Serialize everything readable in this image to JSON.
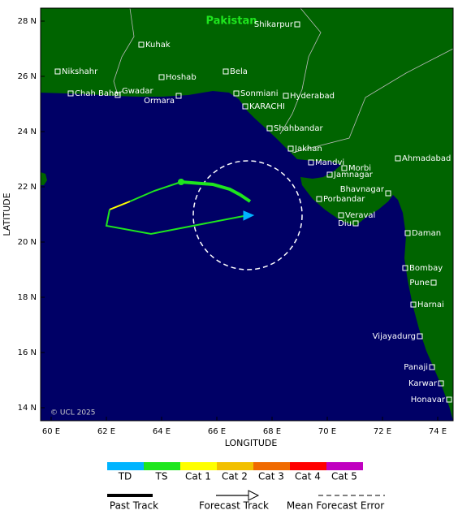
{
  "map": {
    "country": "Pakistan",
    "copyright": "© UCL 2025",
    "x_label": "LONGITUDE",
    "y_label": "LATITUDE",
    "xticks": [
      "60 E",
      "62 E",
      "64 E",
      "66 E",
      "68 E",
      "70 E",
      "72 E",
      "74 E"
    ],
    "yticks": [
      "28 N",
      "26 N",
      "24 N",
      "22 N",
      "20 N",
      "18 N",
      "16 N",
      "14 N"
    ],
    "cities": [
      "Shikarpur",
      "Kuhak",
      "Nikshahr",
      "Hoshab",
      "Bela",
      "Chah Bahar",
      "Gwadar",
      "Ormara",
      "Sonmiani",
      "Hyderabad",
      "KARACHI",
      "Shahbandar",
      "Jakhan",
      "Mandvi",
      "Morbi",
      "Jamnagar",
      "Ahmadabad",
      "Bhavnagar",
      "Porbandar",
      "Veraval",
      "Diu",
      "Daman",
      "Bombay",
      "Pune",
      "Harnai",
      "Vijayadurg",
      "Panaji",
      "Karwar",
      "Honavar"
    ]
  },
  "legend": {
    "categories": [
      "TD",
      "TS",
      "Cat 1",
      "Cat 2",
      "Cat 3",
      "Cat 4",
      "Cat 5"
    ],
    "colors": [
      "#00b4ff",
      "#1ee61e",
      "#ffff00",
      "#f2c000",
      "#f06a00",
      "#ff0000",
      "#c000c0"
    ],
    "past_track": "Past Track",
    "forecast_track": "Forecast Track",
    "error": "Mean Forecast Error"
  }
}
